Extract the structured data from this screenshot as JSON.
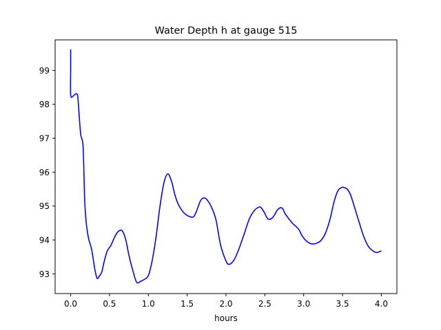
{
  "chart_data": {
    "type": "line",
    "title": "Water Depth h at gauge 515",
    "xlabel": "hours",
    "ylabel": "",
    "xlim": [
      -0.2,
      4.2
    ],
    "ylim": [
      92.42,
      99.9
    ],
    "grid": false,
    "x_ticks": [
      "0.0",
      "0.5",
      "1.0",
      "1.5",
      "2.0",
      "2.5",
      "3.0",
      "3.5",
      "4.0"
    ],
    "y_ticks": [
      "93",
      "94",
      "95",
      "96",
      "97",
      "98",
      "99"
    ],
    "series": [
      {
        "color": "#0000ff",
        "x": [
          0.0,
          0.0,
          0.0,
          0.03,
          0.06,
          0.09,
          0.11,
          0.13,
          0.16,
          0.18,
          0.2,
          0.23,
          0.27,
          0.31,
          0.34,
          0.37,
          0.4,
          0.43,
          0.47,
          0.52,
          0.58,
          0.63,
          0.67,
          0.71,
          0.75,
          0.8,
          0.85,
          0.9,
          0.95,
          1.0,
          1.05,
          1.1,
          1.15,
          1.2,
          1.25,
          1.3,
          1.34,
          1.38,
          1.45,
          1.52,
          1.58,
          1.62,
          1.67,
          1.71,
          1.75,
          1.81,
          1.87,
          1.93,
          2.0,
          2.04,
          2.1,
          2.16,
          2.23,
          2.3,
          2.37,
          2.44,
          2.49,
          2.54,
          2.6,
          2.66,
          2.7,
          2.73,
          2.76,
          2.81,
          2.86,
          2.9,
          2.94,
          2.98,
          3.03,
          3.08,
          3.12,
          3.16,
          3.22,
          3.28,
          3.34,
          3.39,
          3.44,
          3.49,
          3.53,
          3.56,
          3.6,
          3.65,
          3.71,
          3.77,
          3.83,
          3.89,
          3.94,
          3.98,
          4.0
        ],
        "y": [
          99.62,
          99.1,
          98.28,
          98.24,
          98.3,
          98.25,
          97.65,
          97.1,
          96.75,
          95.2,
          94.52,
          94.05,
          93.72,
          93.15,
          92.87,
          92.94,
          93.05,
          93.35,
          93.67,
          93.85,
          94.15,
          94.28,
          94.25,
          94.0,
          93.55,
          93.1,
          92.75,
          92.78,
          92.84,
          92.95,
          93.4,
          94.1,
          95.0,
          95.68,
          95.95,
          95.72,
          95.35,
          95.08,
          94.82,
          94.7,
          94.68,
          94.85,
          95.15,
          95.24,
          95.2,
          94.98,
          94.6,
          93.85,
          93.38,
          93.28,
          93.4,
          93.7,
          94.15,
          94.62,
          94.88,
          94.97,
          94.82,
          94.62,
          94.66,
          94.88,
          94.95,
          94.92,
          94.78,
          94.62,
          94.48,
          94.4,
          94.3,
          94.12,
          93.98,
          93.9,
          93.88,
          93.9,
          93.98,
          94.2,
          94.62,
          95.12,
          95.45,
          95.55,
          95.54,
          95.5,
          95.35,
          95.0,
          94.55,
          94.12,
          93.82,
          93.68,
          93.63,
          93.66,
          93.68
        ]
      }
    ]
  }
}
